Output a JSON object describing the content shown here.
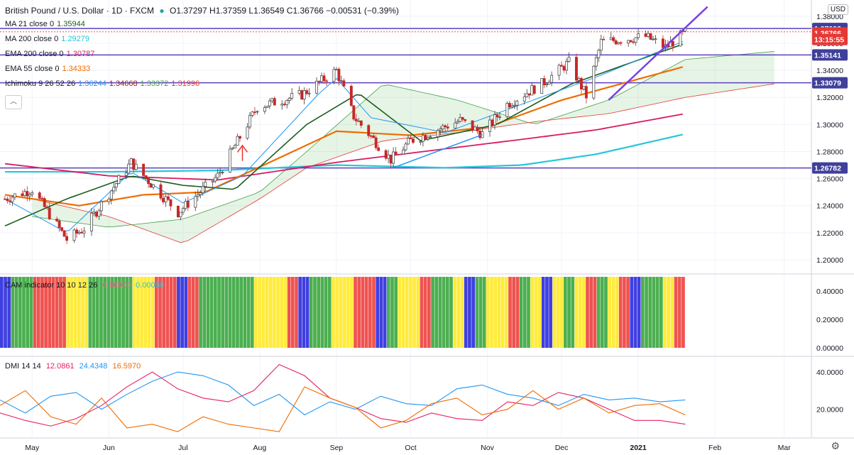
{
  "header": {
    "symbol": "British Pound / U.S. Dollar · 1D · FXCM",
    "ohlc": "O1.37297  H1.37359  L1.36549  C1.36766  −0.00531  (−0.39%)"
  },
  "currency_button": "USD",
  "indicators": [
    {
      "name": "MA 21 close 0",
      "values": [
        "1.35944"
      ],
      "colors": [
        "#1b5e20"
      ]
    },
    {
      "name": "MA 200 close 0",
      "values": [
        "1.29279"
      ],
      "colors": [
        "#26c6da"
      ]
    },
    {
      "name": "EMA 200 close 0",
      "values": [
        "1.30787"
      ],
      "colors": [
        "#d81b60"
      ]
    },
    {
      "name": "EMA 55 close 0",
      "values": [
        "1.34333"
      ],
      "colors": [
        "#ef6c00"
      ]
    },
    {
      "name": "Ichimoku 9 26 52 26",
      "values": [
        "1.36244",
        "1.34668",
        "1.33372",
        "1.31996"
      ],
      "colors": [
        "#2196f3",
        "#8d1f1f",
        "#43a047",
        "#e53935"
      ]
    }
  ],
  "cam": {
    "label": "CAM indicator 10 10 12 26",
    "values": [
      "0.50000",
      "0.00000"
    ],
    "colors": [
      "#f06292",
      "#26c6da"
    ]
  },
  "dmi": {
    "label": "DMI 14 14",
    "values": [
      "12.0861",
      "24.4348",
      "16.5970"
    ],
    "colors": [
      "#e91e63",
      "#2196f3",
      "#ef6c00"
    ]
  },
  "price_tags": [
    {
      "text": "1.37092",
      "color": "#3f3f9c"
    },
    {
      "text": "1.36766",
      "color": "#e53935"
    },
    {
      "text": "13:15:55",
      "color": "#e53935"
    },
    {
      "text": "1.35141",
      "color": "#3f3f9c"
    },
    {
      "text": "1.33079",
      "color": "#3f3f9c"
    },
    {
      "text": "1.26782",
      "color": "#3f3f9c"
    }
  ],
  "chart_data": {
    "type": "candlestick",
    "price_axis": {
      "ticks": [
        "1.38000",
        "1.36000",
        "1.34000",
        "1.32000",
        "1.30000",
        "1.28000",
        "1.26000",
        "1.24000",
        "1.22000",
        "1.20000"
      ],
      "ylim": [
        1.19,
        1.392
      ]
    },
    "cam_axis": {
      "ticks": [
        "0.40000",
        "0.20000",
        "0.00000"
      ],
      "ylim": [
        0,
        0.5
      ]
    },
    "dmi_axis": {
      "ticks": [
        "40.0000",
        "20.0000"
      ],
      "ylim": [
        5,
        48
      ]
    },
    "x_ticks": [
      "May",
      "Jun",
      "Jul",
      "Aug",
      "Sep",
      "Oct",
      "Nov",
      "Dec",
      "2021",
      "Feb",
      "Mar"
    ],
    "horizontal_levels": [
      1.37092,
      1.35141,
      1.33079,
      1.26782
    ],
    "price_keypoints": {
      "dates": [
        "2020-04-20",
        "2020-05-01",
        "2020-05-15",
        "2020-05-22",
        "2020-06-10",
        "2020-06-29",
        "2020-07-15",
        "2020-07-31",
        "2020-08-18",
        "2020-09-01",
        "2020-09-08",
        "2020-09-23",
        "2020-10-01",
        "2020-10-21",
        "2020-10-30",
        "2020-11-09",
        "2020-11-23",
        "2020-12-04",
        "2020-12-11",
        "2020-12-17",
        "2021-01-04",
        "2021-01-12",
        "2021-01-20"
      ],
      "closes": [
        1.245,
        1.252,
        1.215,
        1.223,
        1.272,
        1.235,
        1.262,
        1.313,
        1.322,
        1.34,
        1.306,
        1.274,
        1.288,
        1.303,
        1.293,
        1.315,
        1.33,
        1.346,
        1.321,
        1.361,
        1.365,
        1.357,
        1.368
      ]
    },
    "ma21_keypoints": {
      "dates": [
        "2020-04-20",
        "2020-05-15",
        "2020-06-10",
        "2020-07-01",
        "2020-07-22",
        "2020-08-20",
        "2020-09-10",
        "2020-10-05",
        "2020-11-05",
        "2020-12-05",
        "2021-01-20"
      ],
      "values": [
        1.225,
        1.245,
        1.262,
        1.255,
        1.252,
        1.3,
        1.323,
        1.288,
        1.3,
        1.33,
        1.36
      ]
    },
    "ma200_keypoints": {
      "dates": [
        "2020-04-20",
        "2020-06-01",
        "2020-07-15",
        "2020-09-01",
        "2020-10-15",
        "2020-11-15",
        "2020-12-15",
        "2021-01-20"
      ],
      "values": [
        1.265,
        1.265,
        1.266,
        1.27,
        1.268,
        1.27,
        1.278,
        1.293
      ]
    },
    "ema200_keypoints": {
      "dates": [
        "2020-04-20",
        "2020-06-01",
        "2020-07-15",
        "2020-09-01",
        "2020-10-15",
        "2020-11-15",
        "2020-12-15",
        "2021-01-20"
      ],
      "values": [
        1.271,
        1.262,
        1.259,
        1.272,
        1.282,
        1.289,
        1.296,
        1.308
      ]
    },
    "ema55_keypoints": {
      "dates": [
        "2020-04-20",
        "2020-05-20",
        "2020-06-15",
        "2020-07-10",
        "2020-08-05",
        "2020-09-01",
        "2020-10-01",
        "2020-11-01",
        "2020-12-01",
        "2021-01-20"
      ],
      "values": [
        1.248,
        1.24,
        1.248,
        1.25,
        1.272,
        1.295,
        1.292,
        1.298,
        1.318,
        1.343
      ]
    },
    "tenkan_keypoints": {
      "dates": [
        "2020-04-20",
        "2020-05-15",
        "2020-06-10",
        "2020-07-01",
        "2020-07-25",
        "2020-08-25",
        "2020-09-01",
        "2020-09-15",
        "2020-10-15",
        "2020-11-15",
        "2020-12-15",
        "2021-01-20"
      ],
      "values": [
        1.245,
        1.22,
        1.265,
        1.242,
        1.262,
        1.323,
        1.334,
        1.305,
        1.294,
        1.315,
        1.335,
        1.362
      ]
    },
    "cloud_span_a": {
      "dates": [
        "2020-05-01",
        "2020-06-01",
        "2020-07-01",
        "2020-08-01",
        "2020-08-20",
        "2020-09-20",
        "2020-10-20",
        "2020-11-20",
        "2020-12-20",
        "2021-01-20",
        "2021-02-25"
      ],
      "values": [
        1.232,
        1.224,
        1.23,
        1.25,
        1.28,
        1.33,
        1.318,
        1.3,
        1.318,
        1.348,
        1.354
      ]
    },
    "cloud_span_b": {
      "dates": [
        "2020-05-01",
        "2020-06-01",
        "2020-07-01",
        "2020-08-01",
        "2020-08-20",
        "2020-09-20",
        "2020-10-20",
        "2020-11-20",
        "2020-12-20",
        "2021-01-20",
        "2021-02-25"
      ],
      "values": [
        1.245,
        1.232,
        1.212,
        1.245,
        1.268,
        1.288,
        1.294,
        1.302,
        1.308,
        1.32,
        1.33
      ]
    },
    "cam_colors": [
      "blue",
      "green",
      "green",
      "red",
      "red",
      "red",
      "yellow",
      "yellow",
      "green",
      "green",
      "green",
      "green",
      "yellow",
      "yellow",
      "red",
      "red",
      "blue",
      "red",
      "green",
      "green",
      "green",
      "green",
      "green",
      "yellow",
      "yellow",
      "yellow",
      "red",
      "blue",
      "green",
      "green",
      "yellow",
      "yellow",
      "red",
      "red",
      "blue",
      "green",
      "yellow",
      "yellow",
      "red",
      "green",
      "green",
      "yellow",
      "blue",
      "green",
      "yellow",
      "yellow",
      "red",
      "green",
      "yellow",
      "blue",
      "yellow",
      "green",
      "yellow",
      "red",
      "green",
      "yellow",
      "red",
      "blue",
      "green",
      "green",
      "yellow",
      "red"
    ],
    "dmi_series": [
      {
        "name": "DI+",
        "color": "#e91e63",
        "values": [
          18,
          14,
          11,
          15,
          22,
          32,
          40,
          31,
          26,
          24,
          30,
          44,
          38,
          26,
          21,
          15,
          13,
          18,
          15,
          14,
          24,
          22,
          29,
          26,
          20,
          14,
          14,
          12
        ]
      },
      {
        "name": "DI-",
        "color": "#2196f3",
        "values": [
          25,
          18,
          27,
          29,
          20,
          28,
          35,
          40,
          38,
          33,
          22,
          28,
          17,
          24,
          20,
          27,
          23,
          22,
          31,
          33,
          28,
          26,
          22,
          28,
          25,
          26,
          24,
          25
        ]
      },
      {
        "name": "ADX",
        "color": "#ef6c00",
        "values": [
          22,
          30,
          16,
          12,
          26,
          10,
          12,
          8,
          16,
          12,
          10,
          8,
          32,
          26,
          21,
          10,
          14,
          23,
          26,
          17,
          20,
          30,
          20,
          26,
          18,
          22,
          23,
          17
        ]
      }
    ]
  }
}
